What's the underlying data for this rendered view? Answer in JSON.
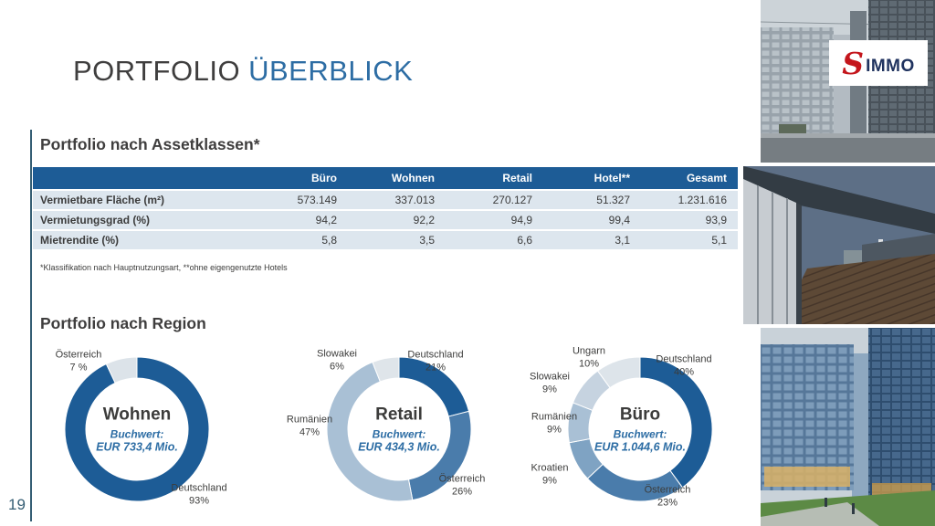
{
  "slide": {
    "title_part1": "PORTFOLIO",
    "title_part2": "ÜBERBLICK",
    "page_number": "19",
    "section1_title": "Portfolio nach Assetklassen*",
    "section2_title": "Portfolio nach Region",
    "footnote": "*Klassifikation nach Hauptnutzungsart, **ohne eigengenutzte Hotels"
  },
  "logo": {
    "s": "S",
    "text": "IMMO"
  },
  "table": {
    "columns": [
      "",
      "Büro",
      "Wohnen",
      "Retail",
      "Hotel**",
      "Gesamt"
    ],
    "rows": [
      {
        "label": "Vermietbare Fläche (m²)",
        "values": [
          "573.149",
          "337.013",
          "270.127",
          "51.327",
          "1.231.616"
        ]
      },
      {
        "label": "Vermietungsgrad (%)",
        "values": [
          "94,2",
          "92,2",
          "94,9",
          "99,4",
          "93,9"
        ]
      },
      {
        "label": "Mietrendite (%)",
        "values": [
          "5,8",
          "3,5",
          "6,6",
          "3,1",
          "5,1"
        ]
      }
    ]
  },
  "chart_data": [
    {
      "type": "pie",
      "variant": "donut",
      "title": "Wohnen",
      "center_label": "Buchwert:",
      "center_value": "EUR 733,4 Mio.",
      "segments": [
        {
          "label": "Deutschland",
          "pct": 93,
          "pct_label": "93%",
          "color": "#1d5c96"
        },
        {
          "label": "Österreich",
          "pct": 7,
          "pct_label": "7 %",
          "color": "#dce3e9"
        }
      ]
    },
    {
      "type": "pie",
      "variant": "donut",
      "title": "Retail",
      "center_label": "Buchwert:",
      "center_value": "EUR 434,3 Mio.",
      "segments": [
        {
          "label": "Deutschland",
          "pct": 21,
          "pct_label": "21%",
          "color": "#1d5c96"
        },
        {
          "label": "Österreich",
          "pct": 26,
          "pct_label": "26%",
          "color": "#4a7cab"
        },
        {
          "label": "Rumänien",
          "pct": 47,
          "pct_label": "47%",
          "color": "#a9c0d5"
        },
        {
          "label": "Slowakei",
          "pct": 6,
          "pct_label": "6%",
          "color": "#dfe5ea"
        }
      ]
    },
    {
      "type": "pie",
      "variant": "donut",
      "title": "Büro",
      "center_label": "Buchwert:",
      "center_value": "EUR 1.044,6 Mio.",
      "segments": [
        {
          "label": "Deutschland",
          "pct": 40,
          "pct_label": "40%",
          "color": "#1d5c96"
        },
        {
          "label": "Österreich",
          "pct": 23,
          "pct_label": "23%",
          "color": "#4a7cab"
        },
        {
          "label": "Kroatien",
          "pct": 9,
          "pct_label": "9%",
          "color": "#7fa3c3"
        },
        {
          "label": "Rumänien",
          "pct": 9,
          "pct_label": "9%",
          "color": "#a9c0d5"
        },
        {
          "label": "Slowakei",
          "pct": 9,
          "pct_label": "9%",
          "color": "#c6d3e0"
        },
        {
          "label": "Ungarn",
          "pct": 10,
          "pct_label": "10%",
          "color": "#dde4ea"
        }
      ]
    }
  ],
  "colors": {
    "accent_blue": "#2d6da4",
    "table_header": "#1d5c96",
    "table_row": "#dde6ee",
    "rule": "#355e74",
    "logo_red": "#c4161c",
    "logo_navy": "#20335f"
  }
}
